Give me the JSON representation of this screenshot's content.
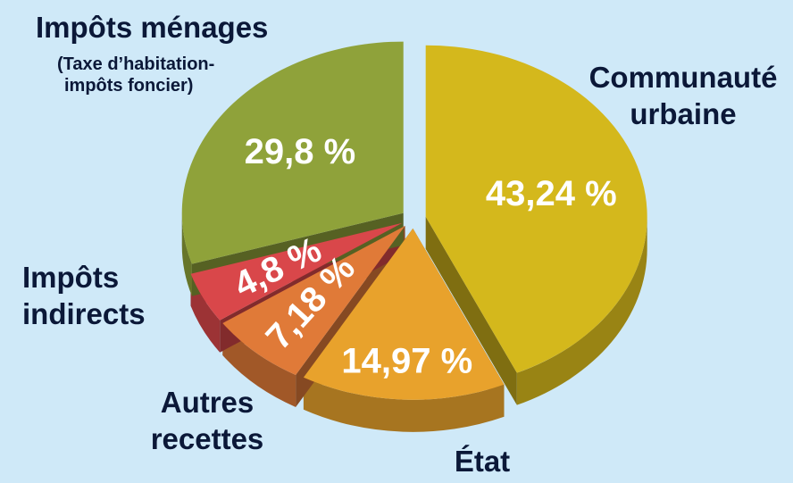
{
  "chart_data": {
    "type": "pie3d",
    "categories": [
      "Communauté urbaine",
      "État",
      "Autres recettes",
      "Impôts indirects",
      "Impôts ménages"
    ],
    "values": [
      43.24,
      14.97,
      7.18,
      4.8,
      29.8
    ],
    "value_labels": [
      "43,24 %",
      "14,97 %",
      "7,18 %",
      "4,8 %",
      "29,8 %"
    ],
    "colors": [
      "#d4b81c",
      "#e8a22c",
      "#e07a38",
      "#d9474a",
      "#8fa23a"
    ],
    "annotations": [
      "(Taxe d’habitation-",
      "impôts foncier)"
    ]
  }
}
